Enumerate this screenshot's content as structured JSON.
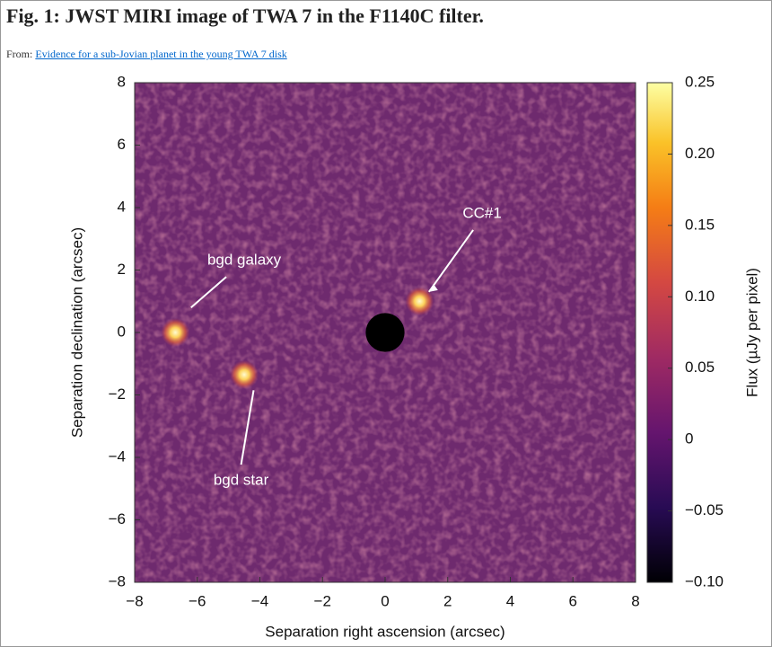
{
  "header": {
    "title": "Fig. 1: JWST MIRI image of TWA 7 in the F1140C filter.",
    "source_prefix": "From:",
    "source_link": "Evidence for a sub-Jovian planet in the young TWA 7 disk"
  },
  "chart_data": {
    "type": "image",
    "xlabel": "Separation right ascension (arcsec)",
    "ylabel": "Separation declination (arcsec)",
    "colorbar_label": "Flux (µJy per pixel)",
    "xlim": [
      -8,
      8
    ],
    "ylim": [
      -8,
      8
    ],
    "xticks": [
      {
        "value": -8,
        "label": "−8"
      },
      {
        "value": -6,
        "label": "−6"
      },
      {
        "value": -4,
        "label": "−4"
      },
      {
        "value": -2,
        "label": "−2"
      },
      0,
      2,
      4,
      6,
      8
    ],
    "yticks": [
      {
        "value": -8,
        "label": "−8"
      },
      {
        "value": -6,
        "label": "−6"
      },
      {
        "value": -4,
        "label": "−4"
      },
      {
        "value": -2,
        "label": "−2"
      },
      0,
      2,
      4,
      6,
      8
    ],
    "clim": [
      -0.1,
      0.25
    ],
    "cticks": [
      {
        "value": -0.1,
        "label": "−0.10"
      },
      {
        "value": -0.05,
        "label": "−0.05"
      },
      0,
      0.05,
      {
        "value": 0.1,
        "label": "0.10"
      },
      0.15,
      {
        "value": 0.2,
        "label": "0.20"
      },
      0.25
    ],
    "sources": [
      {
        "label": "bgd galaxy",
        "x": -6.7,
        "y": 0
      },
      {
        "label": "bgd star",
        "x": -4.5,
        "y": -1.35
      },
      {
        "label": "CC#1",
        "x": 1.1,
        "y": 1.0
      }
    ]
  }
}
